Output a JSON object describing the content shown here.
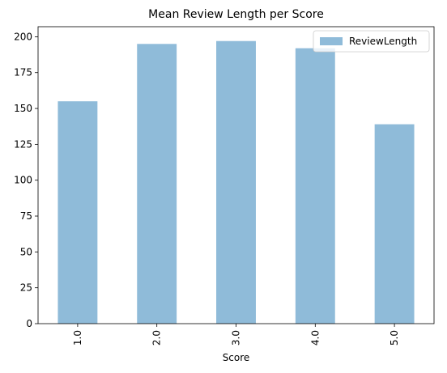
{
  "chart_data": {
    "type": "bar",
    "title": "Mean Review Length per Score",
    "xlabel": "Score",
    "ylabel": "",
    "categories": [
      "1.0",
      "2.0",
      "3.0",
      "4.0",
      "5.0"
    ],
    "series": [
      {
        "name": "ReviewLength",
        "values": [
          155,
          195,
          197,
          192,
          139
        ]
      }
    ],
    "ylim": [
      0,
      207
    ],
    "yticks": [
      0,
      25,
      50,
      75,
      100,
      125,
      150,
      175,
      200
    ],
    "legend_position": "top-right",
    "grid": false,
    "bar_color": "#8fbbd9"
  }
}
